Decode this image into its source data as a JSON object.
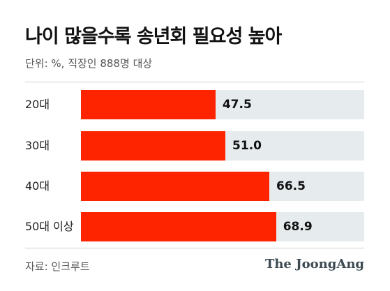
{
  "chart_data": {
    "type": "bar",
    "orientation": "horizontal",
    "title": "나이 많을수록 송년회 필요성 높아",
    "subtitle": "단위: %, 직장인 888명 대상",
    "categories": [
      "20대",
      "30대",
      "40대",
      "50대 이상"
    ],
    "values": [
      47.5,
      51.0,
      66.5,
      68.9
    ],
    "value_labels": [
      "47.5",
      "51.0",
      "66.5",
      "68.9"
    ],
    "xlim": [
      0,
      100
    ],
    "grid": false,
    "legend": "none",
    "bar_color": "#ff2400",
    "track_color": "#e6ebee"
  },
  "footer": {
    "source": "자료: 인크루트",
    "brand": "The JoongAng"
  }
}
